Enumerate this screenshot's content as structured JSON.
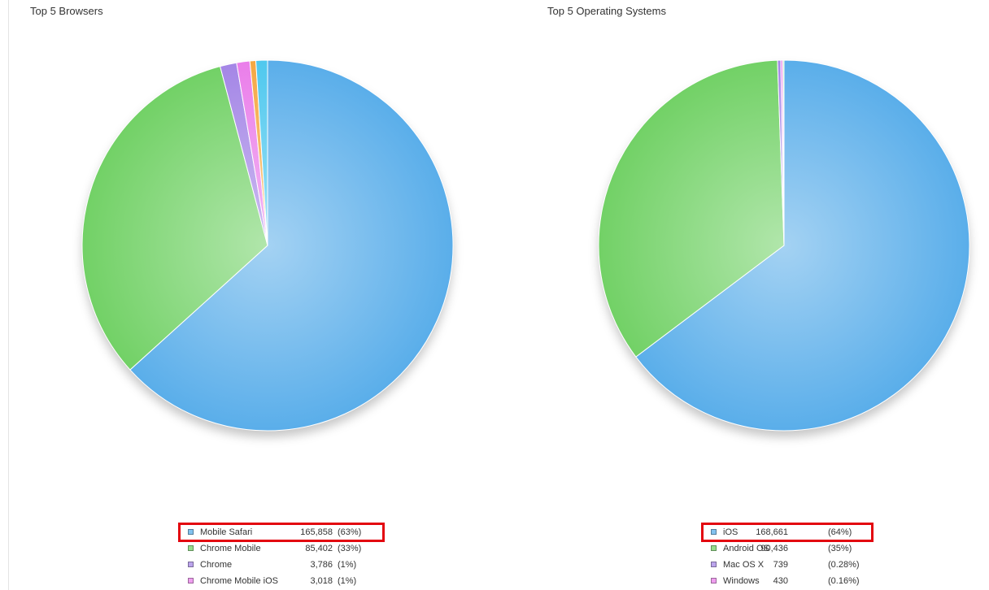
{
  "chart_data": [
    {
      "type": "pie",
      "title": "Top 5 Browsers",
      "slices": [
        {
          "label": "Mobile Safari",
          "value": 165858,
          "value_text": "165,858",
          "percent_text": "(63%)",
          "color": "#5aaeea"
        },
        {
          "label": "Chrome Mobile",
          "value": 85402,
          "value_text": "85,402",
          "percent_text": "(33%)",
          "color": "#72d166"
        },
        {
          "label": "Chrome",
          "value": 3786,
          "value_text": "3,786",
          "percent_text": "(1%)",
          "color": "#a486e6"
        },
        {
          "label": "Chrome Mobile iOS",
          "value": 3018,
          "value_text": "3,018",
          "percent_text": "(1%)",
          "color": "#ea7eea"
        },
        {
          "label": "",
          "value": 1350,
          "color": "#f5a742"
        },
        {
          "label": "",
          "value": 2650,
          "color": "#4fc8ee"
        }
      ],
      "highlighted_legend_item": "Mobile Safari",
      "legend_placement": "bottom"
    },
    {
      "type": "pie",
      "title": "Top 5 Operating Systems",
      "slices": [
        {
          "label": "iOS",
          "value": 168661,
          "value_text": "168,661",
          "percent_text": "(64%)",
          "color": "#5aaeea"
        },
        {
          "label": "Android OS",
          "value": 90436,
          "value_text": "90,436",
          "percent_text": "(35%)",
          "color": "#72d166"
        },
        {
          "label": "Mac OS X",
          "value": 739,
          "value_text": "739",
          "percent_text": "(0.28%)",
          "color": "#a486e6"
        },
        {
          "label": "Windows",
          "value": 430,
          "value_text": "430",
          "percent_text": "(0.16%)",
          "color": "#ea7eea"
        },
        {
          "label": "",
          "value": 300,
          "color": "#bfe6b8"
        }
      ],
      "highlighted_legend_item": "iOS",
      "legend_placement": "bottom"
    }
  ]
}
